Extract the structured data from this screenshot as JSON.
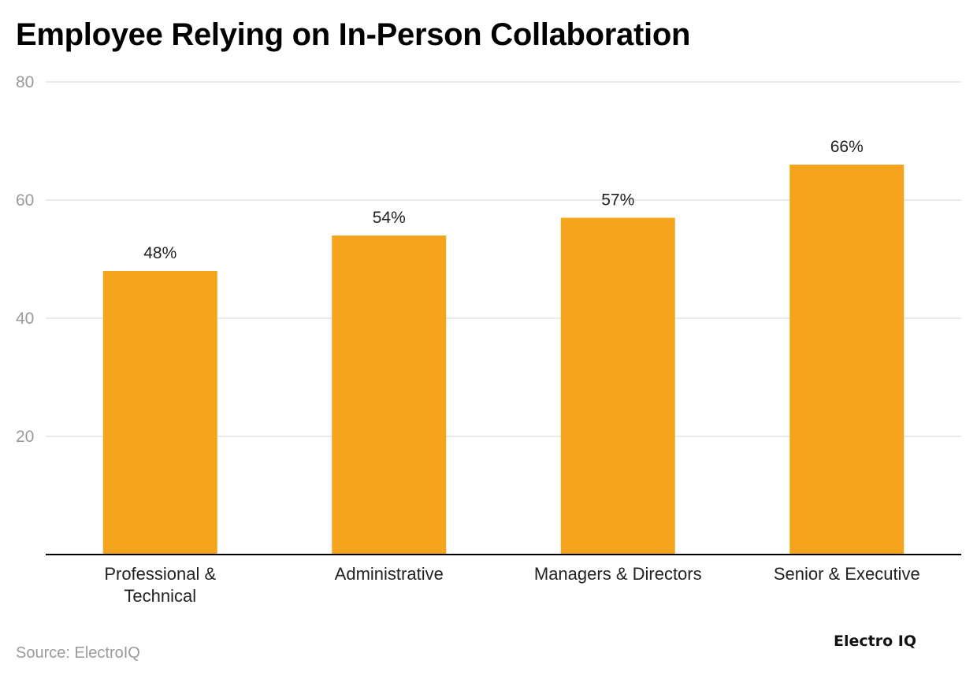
{
  "title": "Employee Relying on In-Person Collaboration",
  "source": "Source: ElectroIQ",
  "brand": "Electro IQ",
  "colors": {
    "bar": "#F5A41D",
    "grid": "#e3e3e3",
    "axis": "#000000"
  },
  "chart_data": {
    "type": "bar",
    "categories": [
      [
        "Professional &",
        "Technical"
      ],
      [
        "Administrative"
      ],
      [
        "Managers & Directors"
      ],
      [
        "Senior & Executive"
      ]
    ],
    "values": [
      48,
      54,
      57,
      66
    ],
    "data_labels": [
      "48%",
      "54%",
      "57%",
      "66%"
    ],
    "yticks": [
      20,
      40,
      60,
      80
    ],
    "ylim": [
      0,
      80
    ],
    "grid": true,
    "legend": false
  }
}
